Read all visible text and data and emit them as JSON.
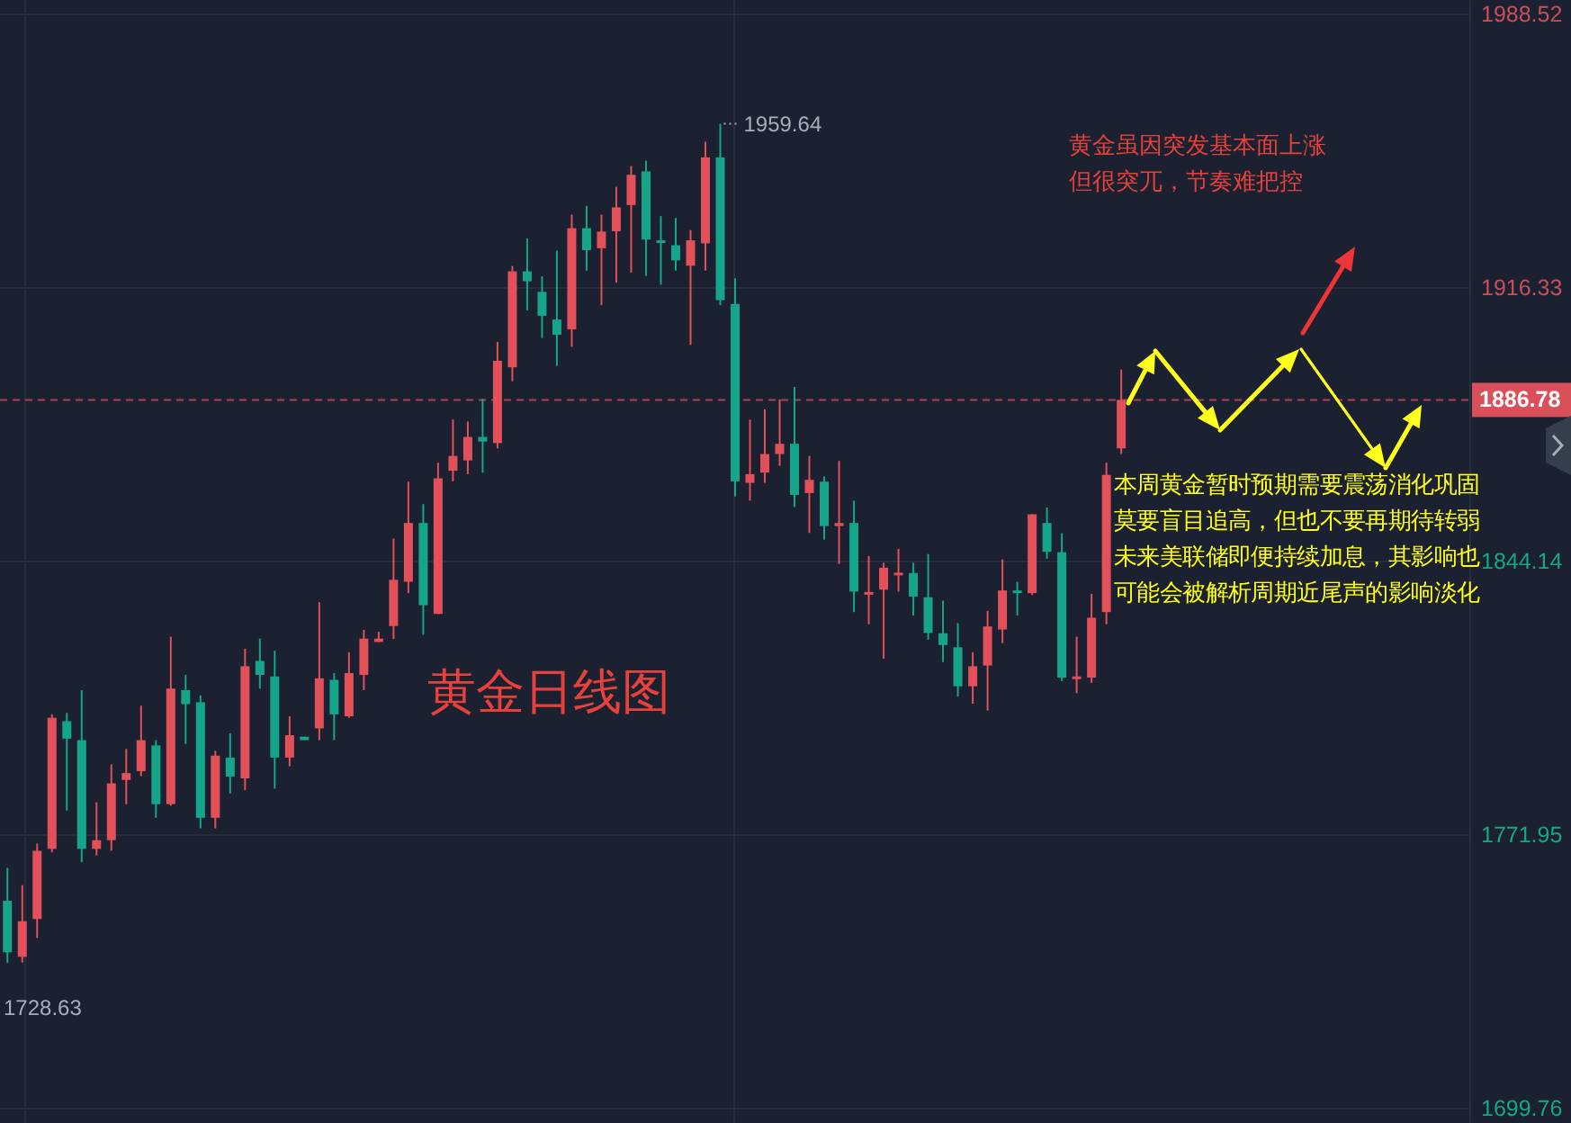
{
  "chart_data": {
    "type": "candlestick",
    "title": "黄金日线图",
    "categories": [
      null,
      null,
      null,
      null,
      null,
      null,
      null,
      null,
      null,
      null,
      null,
      null,
      null,
      null,
      null,
      null,
      null,
      null,
      null,
      null,
      null,
      null,
      null,
      null,
      null,
      null,
      null,
      null,
      null,
      null,
      null,
      null,
      null,
      null,
      null,
      null,
      null,
      null,
      null,
      null,
      null,
      null,
      null,
      null,
      null,
      null,
      null,
      null,
      null,
      null,
      null,
      null,
      null,
      null,
      null,
      null,
      null,
      null,
      null,
      null,
      null,
      null,
      null,
      null,
      null,
      null,
      null,
      null,
      null,
      null,
      null,
      null,
      null,
      null,
      null,
      null,
      null,
      null,
      null,
      null,
      null,
      null,
      null,
      null,
      null,
      null,
      null,
      null,
      null,
      null,
      null,
      null,
      null,
      null,
      null,
      null,
      null,
      null,
      null
    ],
    "ohlc": [
      [
        1754.6,
        1763.3,
        1738.3,
        1741.0
      ],
      [
        1739.8,
        1758.7,
        1738.3,
        1749.2
      ],
      [
        1749.8,
        1769.7,
        1744.8,
        1767.8
      ],
      [
        1768.3,
        1803.8,
        1767.4,
        1802.9
      ],
      [
        1802.0,
        1804.2,
        1778.4,
        1797.4
      ],
      [
        1797.0,
        1810.2,
        1764.8,
        1768.3
      ],
      [
        1768.3,
        1780.6,
        1766.6,
        1770.6
      ],
      [
        1770.6,
        1790.6,
        1767.8,
        1785.6
      ],
      [
        1786.5,
        1794.7,
        1780.1,
        1788.3
      ],
      [
        1788.8,
        1806.1,
        1787.5,
        1797.0
      ],
      [
        1795.6,
        1797.0,
        1776.5,
        1780.1
      ],
      [
        1780.1,
        1824.3,
        1779.7,
        1810.6
      ],
      [
        1810.2,
        1814.2,
        1796.0,
        1806.5
      ],
      [
        1807.0,
        1808.8,
        1773.7,
        1776.5
      ],
      [
        1776.5,
        1794.2,
        1773.7,
        1792.9
      ],
      [
        1792.4,
        1798.8,
        1782.9,
        1787.4
      ],
      [
        1786.9,
        1821.1,
        1783.8,
        1816.5
      ],
      [
        1817.9,
        1823.8,
        1810.6,
        1814.2
      ],
      [
        1813.8,
        1820.6,
        1784.2,
        1792.4
      ],
      [
        1792.4,
        1803.3,
        1790.1,
        1798.3
      ],
      [
        1797.9,
        1797.9,
        1797.0,
        1797.0
      ],
      [
        1800.1,
        1833.4,
        1797.0,
        1813.3
      ],
      [
        1812.9,
        1814.7,
        1797.0,
        1803.8
      ],
      [
        1803.3,
        1820.2,
        1802.9,
        1814.7
      ],
      [
        1814.2,
        1826.1,
        1810.2,
        1823.8
      ],
      [
        1822.9,
        1825.6,
        1822.9,
        1823.8
      ],
      [
        1827.1,
        1850.2,
        1823.7,
        1839.3
      ],
      [
        1838.8,
        1865.2,
        1835.8,
        1854.3
      ],
      [
        1854.3,
        1859.3,
        1824.8,
        1832.6
      ],
      [
        1830.3,
        1870.2,
        1830.3,
        1866.1
      ],
      [
        1868.1,
        1881.6,
        1865.3,
        1872.0
      ],
      [
        1870.8,
        1881.1,
        1867.2,
        1877.0
      ],
      [
        1877.0,
        1887.1,
        1867.6,
        1875.8
      ],
      [
        1875.4,
        1902.1,
        1874.0,
        1897.1
      ],
      [
        1895.4,
        1922.1,
        1891.7,
        1920.7
      ],
      [
        1920.7,
        1929.4,
        1910.4,
        1918.1
      ],
      [
        1915.3,
        1919.4,
        1903.1,
        1909.0
      ],
      [
        1908.0,
        1926.2,
        1895.8,
        1904.0
      ],
      [
        1905.4,
        1935.7,
        1900.8,
        1932.1
      ],
      [
        1932.1,
        1938.0,
        1920.9,
        1926.3
      ],
      [
        1926.8,
        1935.7,
        1911.8,
        1931.2
      ],
      [
        1931.3,
        1943.0,
        1917.7,
        1937.6
      ],
      [
        1938.2,
        1948.5,
        1920.4,
        1946.2
      ],
      [
        1947.1,
        1949.9,
        1919.5,
        1929.1
      ],
      [
        1928.9,
        1935.3,
        1917.2,
        1928.5
      ],
      [
        1927.6,
        1934.8,
        1920.9,
        1923.6
      ],
      [
        1922.2,
        1931.6,
        1901.3,
        1928.9
      ],
      [
        1928.1,
        1954.9,
        1920.9,
        1950.8
      ],
      [
        1950.8,
        1959.64,
        1911.8,
        1913.1
      ],
      [
        1912.1,
        1918.9,
        1861.3,
        1865.3
      ],
      [
        1864.9,
        1881.6,
        1860.2,
        1867.2
      ],
      [
        1867.6,
        1884.3,
        1864.9,
        1872.5
      ],
      [
        1872.5,
        1886.9,
        1869.4,
        1875.2
      ],
      [
        1875.2,
        1890.2,
        1858.5,
        1861.7
      ],
      [
        1862.2,
        1872.0,
        1851.7,
        1865.7
      ],
      [
        1865.2,
        1866.6,
        1849.9,
        1853.5
      ],
      [
        1853.5,
        1870.7,
        1843.5,
        1854.3
      ],
      [
        1854.3,
        1860.2,
        1830.8,
        1836.2
      ],
      [
        1835.6,
        1845.6,
        1827.6,
        1836.1
      ],
      [
        1836.7,
        1843.8,
        1818.5,
        1842.5
      ],
      [
        1840.8,
        1847.5,
        1836.2,
        1841.2
      ],
      [
        1841.1,
        1843.8,
        1829.9,
        1834.9
      ],
      [
        1834.7,
        1846.1,
        1823.5,
        1825.3
      ],
      [
        1825.2,
        1833.8,
        1817.6,
        1822.1
      ],
      [
        1821.5,
        1827.9,
        1808.5,
        1811.2
      ],
      [
        1811.2,
        1820.2,
        1806.6,
        1816.5
      ],
      [
        1816.7,
        1831.1,
        1804.8,
        1827.0
      ],
      [
        1826.2,
        1844.7,
        1822.6,
        1836.5
      ],
      [
        1836.5,
        1838.8,
        1829.9,
        1835.8
      ],
      [
        1835.8,
        1856.6,
        1835.3,
        1856.6
      ],
      [
        1854.3,
        1858.4,
        1844.9,
        1846.7
      ],
      [
        1846.6,
        1851.6,
        1812.6,
        1813.5
      ],
      [
        1813.5,
        1824.3,
        1809.4,
        1813.8
      ],
      [
        1813.5,
        1835.6,
        1812.1,
        1829.3
      ],
      [
        1830.8,
        1870.2,
        1827.6,
        1867.0
      ],
      [
        1874.0,
        1894.8,
        1872.5,
        1886.78
      ],
      null,
      null,
      null,
      null,
      null,
      null,
      null,
      null,
      null,
      null,
      null,
      null,
      null,
      null,
      null,
      null,
      null,
      null,
      null,
      null,
      null,
      null,
      null
    ],
    "colors": [
      "#14a58a",
      "#e2505a",
      "#e2505a",
      "#e2505a",
      "#14a58a",
      "#14a58a",
      "#e2505a",
      "#e2505a",
      "#e2505a",
      "#e2505a",
      "#14a58a",
      "#e2505a",
      "#14a58a",
      "#14a58a",
      "#e2505a",
      "#14a58a",
      "#e2505a",
      "#14a58a",
      "#14a58a",
      "#e2505a",
      "#14a58a",
      "#e2505a",
      "#14a58a",
      "#e2505a",
      "#e2505a",
      "#e2505a",
      "#e2505a",
      "#e2505a",
      "#14a58a",
      "#e2505a",
      "#e2505a",
      "#e2505a",
      "#14a58a",
      "#e2505a",
      "#e2505a",
      "#14a58a",
      "#14a58a",
      "#14a58a",
      "#e2505a",
      "#14a58a",
      "#e2505a",
      "#e2505a",
      "#e2505a",
      "#14a58a",
      "#14a58a",
      "#14a58a",
      "#e2505a",
      "#e2505a",
      "#14a58a",
      "#14a58a",
      "#e2505a",
      "#e2505a",
      "#e2505a",
      "#14a58a",
      "#e2505a",
      "#14a58a",
      "#e2505a",
      "#14a58a",
      "#e2505a",
      "#e2505a",
      "#e2505a",
      "#14a58a",
      "#14a58a",
      "#14a58a",
      "#14a58a",
      "#e2505a",
      "#e2505a",
      "#e2505a",
      "#14a58a",
      "#e2505a",
      "#14a58a",
      "#14a58a",
      "#e2505a",
      "#e2505a",
      "#e2505a",
      "#e2505a",
      null,
      null,
      null,
      null,
      null,
      null,
      null,
      null,
      null,
      null,
      null,
      null,
      null,
      null,
      null,
      null,
      null,
      null,
      null,
      null,
      null,
      null,
      null
    ],
    "ylim": [
      1699.76,
      1988.52
    ],
    "yticks": [
      1699.76,
      1771.95,
      1844.14,
      1916.33,
      1988.52
    ],
    "grid": "y",
    "tick_labels": "y",
    "ref_lines": [
      {
        "axis": "y",
        "value": 1886.78,
        "label": "1886.78",
        "color": "#d9505a",
        "line_style": "dashed"
      }
    ],
    "annotations": [
      "1959.64",
      "1728.63",
      "黄金虽因突发基本面上涨但很突兀，节奏难把控",
      "本周黄金暂时预期需要震荡消化巩固莫要盲目追高，但也不要再期待转弱未来美联储即便持续加息，其影响也可能会被解析周期近尾声的影响淡化"
    ]
  }
}
